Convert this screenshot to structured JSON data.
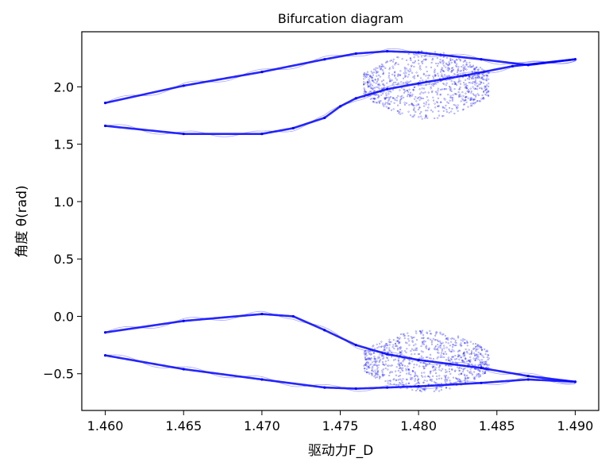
{
  "chart_data": {
    "type": "scatter",
    "title": "Bifurcation diagram",
    "xlabel": "驱动力F_D",
    "ylabel": "角度 θ(rad)",
    "xlim": [
      1.4585,
      1.4915
    ],
    "ylim": [
      -0.82,
      2.48
    ],
    "x_ticks": [
      1.46,
      1.465,
      1.47,
      1.475,
      1.48,
      1.485,
      1.49
    ],
    "x_tick_labels": [
      "1.460",
      "1.465",
      "1.470",
      "1.475",
      "1.480",
      "1.485",
      "1.490"
    ],
    "y_ticks": [
      -0.5,
      0.0,
      0.5,
      1.0,
      1.5,
      2.0
    ],
    "y_tick_labels": [
      "−0.5",
      "0.0",
      "0.5",
      "1.0",
      "1.5",
      "2.0"
    ],
    "grid": false,
    "legend": false,
    "color": "#0000ff",
    "series": [
      {
        "branch": "upper-outer",
        "x": [
          1.46,
          1.465,
          1.47,
          1.474,
          1.476,
          1.478,
          1.48,
          1.484,
          1.487,
          1.49
        ],
        "y": [
          1.86,
          2.01,
          2.13,
          2.24,
          2.29,
          2.31,
          2.3,
          2.24,
          2.19,
          2.24
        ]
      },
      {
        "branch": "upper-inner",
        "x": [
          1.46,
          1.465,
          1.47,
          1.472,
          1.474,
          1.475,
          1.476,
          1.478,
          1.48,
          1.483,
          1.486,
          1.49
        ],
        "y": [
          1.66,
          1.59,
          1.59,
          1.64,
          1.73,
          1.83,
          1.9,
          1.98,
          2.03,
          2.1,
          2.18,
          2.24
        ]
      },
      {
        "branch": "lower-outer",
        "x": [
          1.46,
          1.465,
          1.47,
          1.472,
          1.474,
          1.476,
          1.478,
          1.48,
          1.484,
          1.487,
          1.49
        ],
        "y": [
          -0.14,
          -0.04,
          0.02,
          0.0,
          -0.12,
          -0.25,
          -0.33,
          -0.38,
          -0.45,
          -0.52,
          -0.57
        ]
      },
      {
        "branch": "lower-inner",
        "x": [
          1.46,
          1.465,
          1.47,
          1.474,
          1.476,
          1.478,
          1.48,
          1.484,
          1.487,
          1.49
        ],
        "y": [
          -0.34,
          -0.46,
          -0.55,
          -0.62,
          -0.63,
          -0.62,
          -0.61,
          -0.58,
          -0.55,
          -0.57
        ]
      }
    ],
    "chaotic_band": {
      "x_range": [
        1.4765,
        1.4845
      ],
      "upper_y_range": [
        1.72,
        2.32
      ],
      "lower_y_range": [
        -0.66,
        -0.12
      ]
    }
  }
}
